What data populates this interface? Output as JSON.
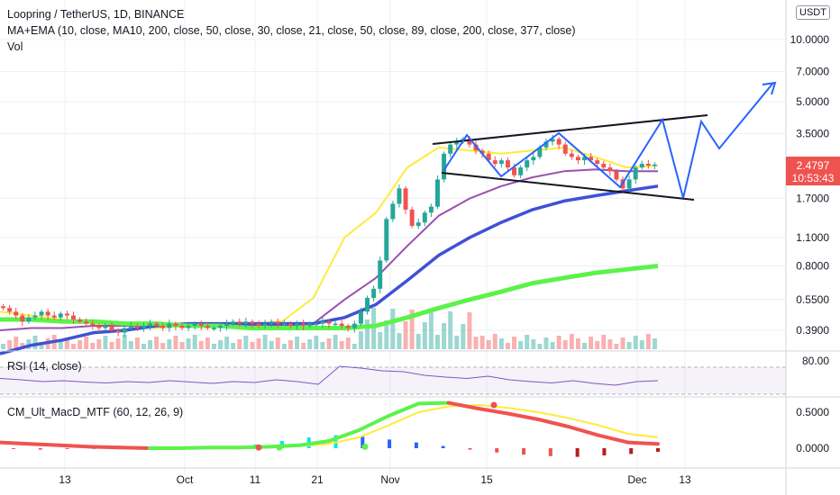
{
  "header": {
    "title": "Loopring / TetherUS, 1D, BINANCE",
    "indicator": "MA+EMA (10, close, MA10, 200, close, 50, close, 30, close, 21, close, 50, close, 89, close, 200, close, 377, close)",
    "volume": "Vol"
  },
  "price_axis": {
    "currency": "USDT",
    "labels": [
      "10.0000",
      "7.0000",
      "5.0000",
      "3.5000",
      "1.7000",
      "1.1000",
      "0.8000",
      "0.5500",
      "0.3900"
    ],
    "last_price": "2.4797",
    "countdown": "10:53:43",
    "last_price_color": "#ef5350"
  },
  "rsi": {
    "label": "RSI (14, close)",
    "levels": [
      "80.00"
    ]
  },
  "macd": {
    "label": "CM_Ult_MacD_MTF (60, 12, 26, 9)",
    "levels": [
      "0.5000",
      "0.0000"
    ]
  },
  "time_axis": {
    "labels": [
      "13",
      "Oct",
      "11",
      "21",
      "Nov",
      "15",
      "Dec",
      "13"
    ]
  },
  "colors": {
    "up": "#26a69a",
    "down": "#ef5350",
    "ma_yellow": "#ffeb3b",
    "ma_purple": "#9c4fb0",
    "ma_blue": "#3f51d6",
    "ma_green": "#5cf24a",
    "pattern_line": "#131722",
    "projection": "#2962ff"
  },
  "chart_data": [
    {
      "type": "line",
      "title": "Loopring / TetherUS, 1D, BINANCE",
      "scale": "log",
      "y_ticks": [
        0.39,
        0.55,
        0.8,
        1.1,
        1.7,
        3.5,
        5.0,
        7.0,
        10.0
      ],
      "candles_close": [
        0.5,
        0.48,
        0.46,
        0.43,
        0.45,
        0.46,
        0.48,
        0.46,
        0.45,
        0.47,
        0.46,
        0.44,
        0.43,
        0.42,
        0.41,
        0.4,
        0.41,
        0.39,
        0.38,
        0.4,
        0.41,
        0.4,
        0.41,
        0.42,
        0.41,
        0.4,
        0.42,
        0.41,
        0.4,
        0.41,
        0.42,
        0.41,
        0.4,
        0.4,
        0.41,
        0.42,
        0.43,
        0.42,
        0.43,
        0.42,
        0.41,
        0.42,
        0.43,
        0.42,
        0.42,
        0.41,
        0.42,
        0.41,
        0.42,
        0.42,
        0.43,
        0.42,
        0.42,
        0.41,
        0.4,
        0.42,
        0.48,
        0.56,
        0.62,
        0.85,
        1.35,
        1.6,
        1.9,
        1.5,
        1.25,
        1.3,
        1.45,
        1.55,
        2.1,
        2.8,
        3.1,
        3.2,
        3.3,
        3.1,
        2.9,
        2.8,
        2.6,
        2.5,
        2.6,
        2.4,
        2.2,
        2.4,
        2.6,
        2.7,
        3.0,
        3.2,
        3.3,
        3.1,
        2.8,
        2.7,
        2.6,
        2.7,
        2.6,
        2.5,
        2.4,
        2.3,
        2.1,
        1.9,
        2.1,
        2.4,
        2.5,
        2.45,
        2.48
      ],
      "series": [
        {
          "name": "MA10",
          "values": [
            0.48,
            0.46,
            0.44,
            0.42,
            0.41,
            0.4,
            0.41,
            0.42,
            0.42,
            0.43,
            0.56,
            1.1,
            1.45,
            2.4,
            3.0,
            2.9,
            2.8,
            2.9,
            3.0,
            2.7,
            2.4,
            2.45
          ]
        },
        {
          "name": "EMA50",
          "values": [
            0.39,
            0.4,
            0.4,
            0.41,
            0.41,
            0.41,
            0.41,
            0.41,
            0.41,
            0.41,
            0.42,
            0.55,
            0.7,
            1.0,
            1.4,
            1.7,
            1.95,
            2.15,
            2.3,
            2.35,
            2.3,
            2.3
          ]
        },
        {
          "name": "EMA89",
          "values": [
            0.3,
            0.33,
            0.35,
            0.38,
            0.39,
            0.41,
            0.42,
            0.42,
            0.42,
            0.42,
            0.42,
            0.45,
            0.52,
            0.68,
            0.9,
            1.1,
            1.3,
            1.5,
            1.65,
            1.75,
            1.85,
            1.95
          ]
        },
        {
          "name": "EMA200",
          "values": [
            0.44,
            0.44,
            0.43,
            0.43,
            0.42,
            0.42,
            0.41,
            0.41,
            0.4,
            0.4,
            0.4,
            0.4,
            0.41,
            0.45,
            0.5,
            0.55,
            0.6,
            0.66,
            0.7,
            0.74,
            0.77,
            0.8
          ]
        }
      ]
    },
    {
      "type": "line",
      "title": "RSI (14, close)",
      "ylim": [
        0,
        100
      ],
      "values": [
        55,
        52,
        48,
        50,
        47,
        45,
        48,
        46,
        50,
        47,
        44,
        48,
        46,
        52,
        48,
        42,
        82,
        78,
        72,
        70,
        62,
        58,
        55,
        60,
        52,
        48,
        45,
        50,
        44,
        40,
        48,
        50
      ]
    },
    {
      "type": "bar",
      "title": "CM_Ult_MacD_MTF (60, 12, 26, 9)",
      "ylim": [
        -0.1,
        0.7
      ],
      "macd": [
        0.08,
        0.06,
        0.04,
        0.02,
        0.01,
        0.0,
        0.0,
        0.01,
        0.01,
        0.02,
        0.04,
        0.1,
        0.25,
        0.45,
        0.62,
        0.63,
        0.55,
        0.48,
        0.4,
        0.3,
        0.18,
        0.08,
        0.06
      ],
      "signal": [
        0.09,
        0.07,
        0.05,
        0.03,
        0.02,
        0.01,
        0.01,
        0.01,
        0.01,
        0.02,
        0.03,
        0.06,
        0.15,
        0.32,
        0.5,
        0.58,
        0.6,
        0.56,
        0.5,
        0.42,
        0.32,
        0.2,
        0.15
      ],
      "histogram": [
        -0.01,
        -0.02,
        -0.01,
        0.0,
        0.0,
        0.0,
        0.0,
        0.01,
        0.02,
        0.05,
        0.1,
        0.15,
        0.18,
        0.16,
        0.12,
        0.08,
        0.03,
        -0.02,
        -0.06,
        -0.09,
        -0.11,
        -0.12,
        -0.1,
        -0.08,
        -0.05
      ]
    }
  ]
}
